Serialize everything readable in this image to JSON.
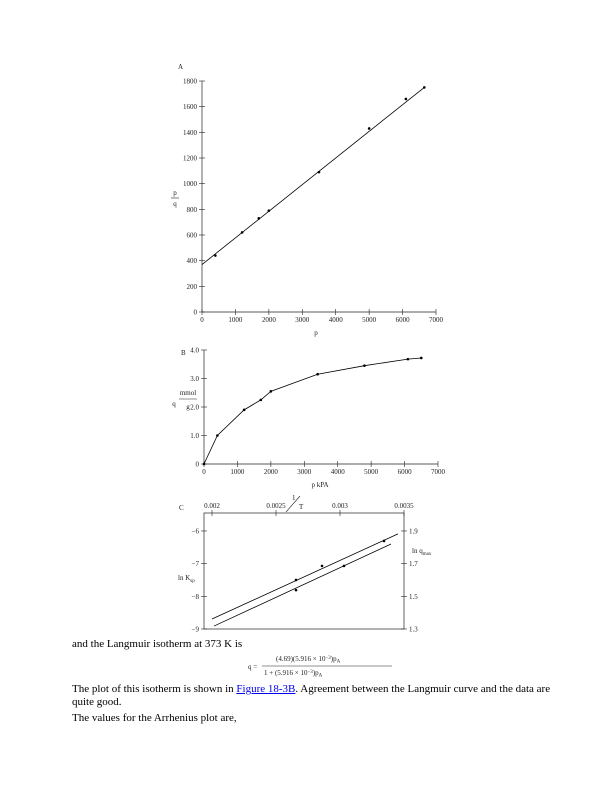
{
  "chart_data": [
    {
      "type": "line",
      "panel_label": "A",
      "x_label": "p",
      "y_label": {
        "numerator": "p",
        "denominator": "q"
      },
      "xlim": [
        0,
        7000
      ],
      "ylim": [
        0,
        1800
      ],
      "xticks": [
        0,
        1000,
        2000,
        3000,
        4000,
        5000,
        6000,
        7000
      ],
      "yticks": [
        0,
        200,
        400,
        600,
        800,
        1000,
        1200,
        1400,
        1600,
        1800
      ],
      "series": [
        {
          "color": "#000000",
          "markers": true,
          "line": false,
          "x": [
            400,
            1200,
            1700,
            2000,
            3500,
            5000,
            6100,
            6650
          ],
          "values": [
            440,
            620,
            730,
            790,
            1090,
            1430,
            1660,
            1750
          ]
        },
        {
          "color": "#000000",
          "markers": false,
          "line": true,
          "x": [
            0,
            6650
          ],
          "values": [
            370,
            1750
          ]
        }
      ]
    },
    {
      "type": "line",
      "panel_label": "B",
      "x_label": "p kPA",
      "y_label": {
        "symbol": "q",
        "numerator": "mmol",
        "denominator": "g"
      },
      "xlim": [
        0,
        7000
      ],
      "ylim": [
        0,
        4
      ],
      "xticks": [
        0,
        1000,
        2000,
        3000,
        4000,
        5000,
        6000,
        7000
      ],
      "yticks": [
        0,
        {
          "value": 1,
          "label": "1.0"
        },
        {
          "value": 2,
          "label": "2.0"
        },
        {
          "value": 3,
          "label": "3.0"
        },
        {
          "value": 4,
          "label": "4.0"
        }
      ],
      "series": [
        {
          "color": "#000000",
          "markers": true,
          "line": true,
          "x": [
            0,
            400,
            1200,
            1700,
            2000,
            3400,
            4800,
            6100,
            6500
          ],
          "values": [
            0,
            1.0,
            1.9,
            2.25,
            2.55,
            3.15,
            3.45,
            3.68,
            3.72
          ]
        }
      ]
    },
    {
      "type": "line",
      "panel_label": "C",
      "frame": true,
      "x_axis_top": true,
      "x_label": {
        "numerator": "1",
        "denominator": "T"
      },
      "y_label": {
        "text": "ln K",
        "subscript": "sp"
      },
      "y2_label": {
        "text": "ln q",
        "subscript": "max"
      },
      "xlim": [
        0.0019375,
        0.0035
      ],
      "ylim": [
        -9,
        -5.45
      ],
      "y2lim": [
        1.3,
        2.01
      ],
      "xticks": [
        0.002,
        0.0025,
        0.003,
        0.0035
      ],
      "yticks": [
        {
          "value": -6,
          "label": "−6"
        },
        {
          "value": -7,
          "label": "−7"
        },
        {
          "value": -8,
          "label": "−8"
        },
        {
          "value": -9,
          "label": "−9"
        }
      ],
      "y2ticks": [
        1.9,
        1.7,
        1.5,
        1.3
      ],
      "series": [
        {
          "color": "#000000",
          "markers": false,
          "line": true,
          "x": [
            0.0020156,
            0.0033984
          ],
          "values": [
            -8.91,
            -6.4
          ]
        },
        {
          "color": "#000000",
          "markers": true,
          "line": false,
          "x": [
            0.0026563,
            0.0030313
          ],
          "values": [
            -7.81,
            -7.07
          ]
        },
        {
          "color": "#000000",
          "markers": false,
          "line": true,
          "axis": "y2",
          "x": [
            0.002,
            0.0034531
          ],
          "values": [
            1.361,
            1.882
          ]
        },
        {
          "color": "#000000",
          "markers": true,
          "line": false,
          "axis": "y2",
          "x": [
            0.0026563,
            0.0028594,
            0.0033438
          ],
          "values": [
            1.6,
            1.686,
            1.839
          ]
        }
      ]
    }
  ],
  "text": {
    "intro": "and the Langmuir isotherm at 373 K is",
    "equation": {
      "lhs": "q =",
      "numerator": [
        "(4.69)(5.916 × 10",
        "−3",
        ")p",
        "A"
      ],
      "denominator": [
        "1 + (5.916 × 10",
        "−3",
        ")p",
        "A"
      ]
    },
    "paragraph": {
      "before": "The plot of this isotherm is shown in ",
      "link": "Figure 18-3B",
      "after": ". Agreement between the Langmuir curve and the data are quite good."
    },
    "closing": "The values for the Arrhenius plot are,"
  }
}
